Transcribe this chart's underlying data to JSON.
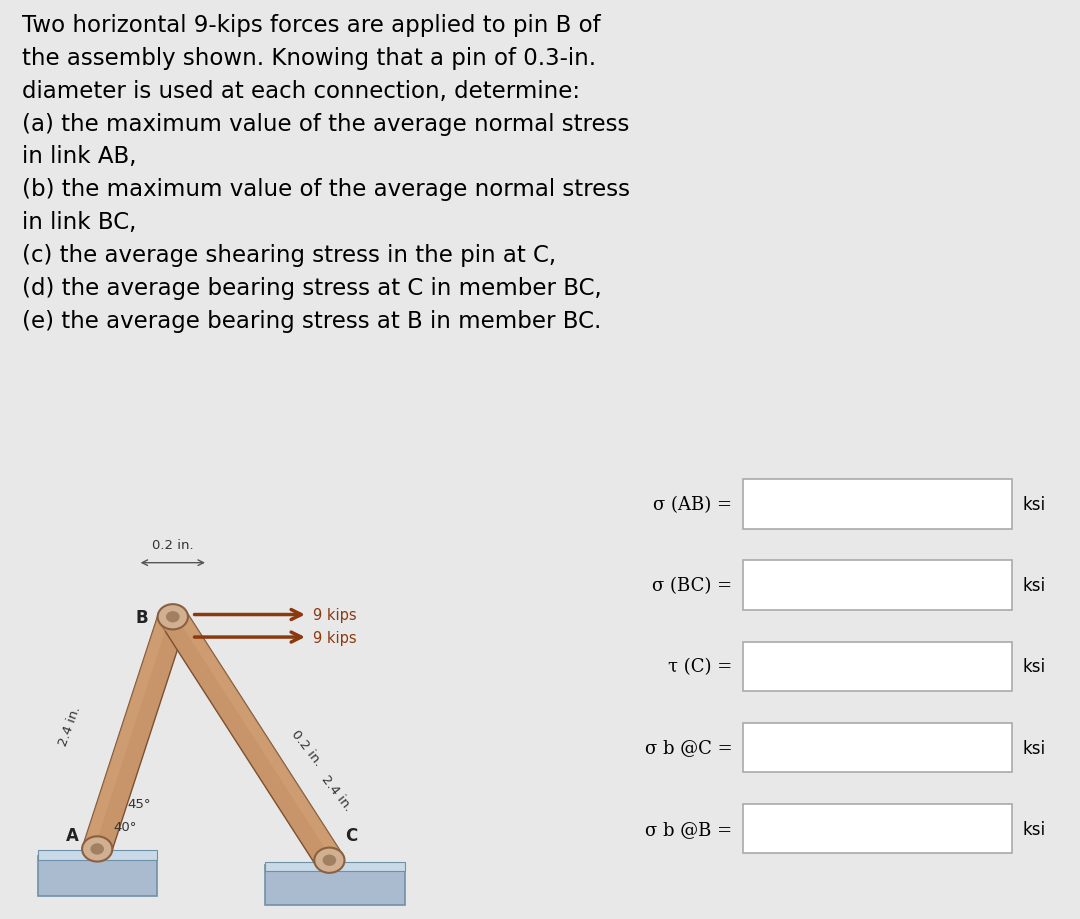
{
  "title_lines": [
    "Two horizontal 9-kips forces are applied to pin B of",
    "the assembly shown. Knowing that a pin of 0.3-in.",
    "diameter is used at each connection, determine:",
    "(a) the maximum value of the average normal stress",
    "in link AB,",
    "(b) the maximum value of the average normal stress",
    "in link BC,",
    "(c) the average shearing stress in the pin at C,",
    "(d) the average bearing stress at C in member BC,",
    "(e) the average bearing stress at B in member BC."
  ],
  "bg_color": "#e8e8e8",
  "text_color": "#000000",
  "title_fontsize": 16.5,
  "answer_labels": [
    "σ (AB) =",
    "σ (BC) =",
    "τ (C) =",
    "σ b @C =",
    "σ b @B ="
  ],
  "ksi_label": "ksi",
  "diagram_labels": {
    "B": "B",
    "A": "A",
    "C": "C",
    "dim1": "0.2 in.",
    "dim2": "2.4 in.",
    "force1": "9 kips",
    "force2": "9 kips",
    "dim3": "0.2 in.",
    "dim4": "2.4 in.",
    "angle1": "45°",
    "angle2": "40°"
  },
  "box_border_color": "#aaaaaa",
  "box_fill_color": "#ffffff",
  "diagram_border": "#888888",
  "link_color": "#c8956b",
  "force_arrow_color": "#8b3a0f",
  "force_label_color": "#8b3a0f",
  "base_color": "#aabbd0",
  "base_top_color": "#c8dae8",
  "base_edge_color": "#7090a8",
  "pin_face_color": "#d0b090",
  "pin_edge_color": "#8a6040",
  "pin_inner_color": "#a08060",
  "shade_color": "#d4a57a",
  "link_edge_color": "#7a5030",
  "dim_color": "#555555",
  "label_color": "#333333",
  "point_label_color": "#222222",
  "diag_bg": "#f5f5f5"
}
